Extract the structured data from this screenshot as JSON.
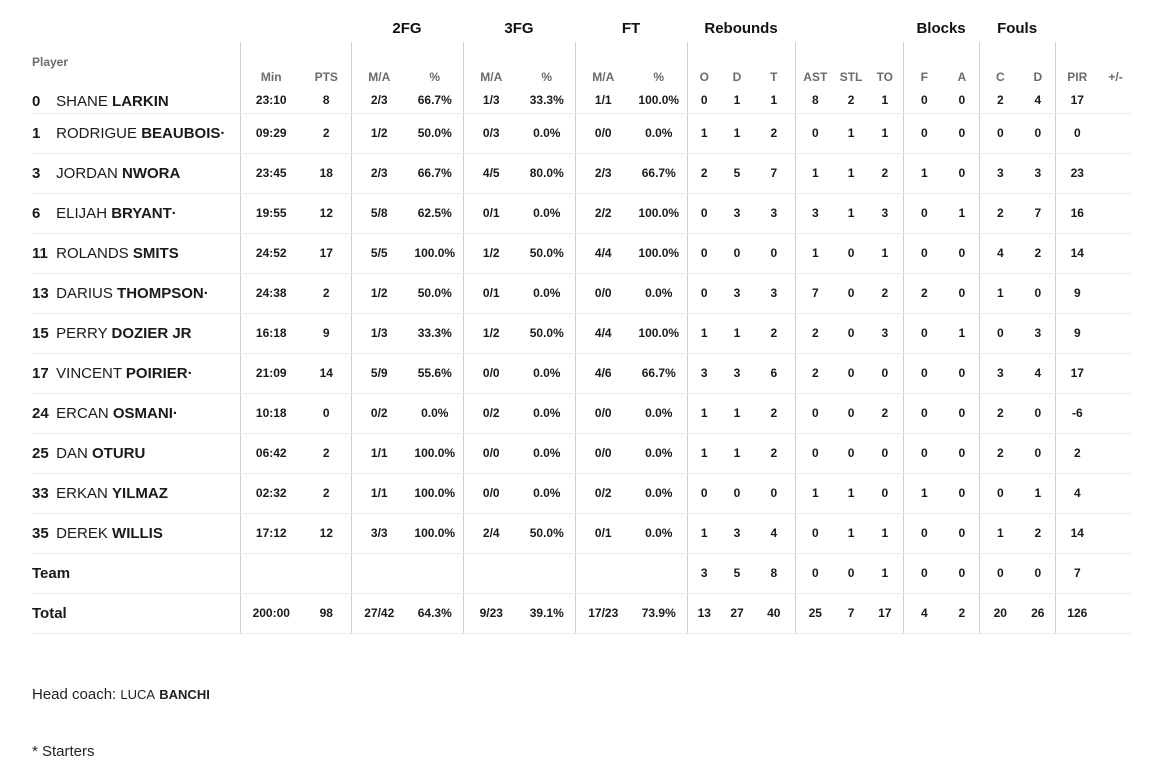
{
  "groups": {
    "fg2": "2FG",
    "fg3": "3FG",
    "ft": "FT",
    "reb": "Rebounds",
    "blk": "Blocks",
    "fouls": "Fouls"
  },
  "headers": {
    "player": "Player",
    "min": "Min",
    "pts": "PTS",
    "fg2_ma": "M/A",
    "fg2_pct": "%",
    "fg3_ma": "M/A",
    "fg3_pct": "%",
    "ft_ma": "M/A",
    "ft_pct": "%",
    "reb_o": "O",
    "reb_d": "D",
    "reb_t": "T",
    "ast": "AST",
    "stl": "STL",
    "to": "TO",
    "blk_f": "F",
    "blk_a": "A",
    "foul_c": "C",
    "foul_d": "D",
    "pir": "PIR",
    "pm": "+/-"
  },
  "players": [
    {
      "num": "0",
      "first": "SHANE",
      "last": "LARKIN",
      "min": "23:10",
      "pts": "8",
      "fg2_ma": "2/3",
      "fg2_pct": "66.7%",
      "fg3_ma": "1/3",
      "fg3_pct": "33.3%",
      "ft_ma": "1/1",
      "ft_pct": "100.0%",
      "o": "0",
      "d": "1",
      "t": "1",
      "ast": "8",
      "stl": "2",
      "to": "1",
      "bf": "0",
      "ba": "0",
      "fc": "2",
      "fd": "4",
      "pir": "17",
      "pm": ""
    },
    {
      "num": "1",
      "first": "RODRIGUE",
      "last": "BEAUBOIS·",
      "min": "09:29",
      "pts": "2",
      "fg2_ma": "1/2",
      "fg2_pct": "50.0%",
      "fg3_ma": "0/3",
      "fg3_pct": "0.0%",
      "ft_ma": "0/0",
      "ft_pct": "0.0%",
      "o": "1",
      "d": "1",
      "t": "2",
      "ast": "0",
      "stl": "1",
      "to": "1",
      "bf": "0",
      "ba": "0",
      "fc": "0",
      "fd": "0",
      "pir": "0",
      "pm": ""
    },
    {
      "num": "3",
      "first": "JORDAN",
      "last": "NWORA",
      "min": "23:45",
      "pts": "18",
      "fg2_ma": "2/3",
      "fg2_pct": "66.7%",
      "fg3_ma": "4/5",
      "fg3_pct": "80.0%",
      "ft_ma": "2/3",
      "ft_pct": "66.7%",
      "o": "2",
      "d": "5",
      "t": "7",
      "ast": "1",
      "stl": "1",
      "to": "2",
      "bf": "1",
      "ba": "0",
      "fc": "3",
      "fd": "3",
      "pir": "23",
      "pm": ""
    },
    {
      "num": "6",
      "first": "ELIJAH",
      "last": "BRYANT·",
      "min": "19:55",
      "pts": "12",
      "fg2_ma": "5/8",
      "fg2_pct": "62.5%",
      "fg3_ma": "0/1",
      "fg3_pct": "0.0%",
      "ft_ma": "2/2",
      "ft_pct": "100.0%",
      "o": "0",
      "d": "3",
      "t": "3",
      "ast": "3",
      "stl": "1",
      "to": "3",
      "bf": "0",
      "ba": "1",
      "fc": "2",
      "fd": "7",
      "pir": "16",
      "pm": ""
    },
    {
      "num": "11",
      "first": "ROLANDS",
      "last": "SMITS",
      "min": "24:52",
      "pts": "17",
      "fg2_ma": "5/5",
      "fg2_pct": "100.0%",
      "fg3_ma": "1/2",
      "fg3_pct": "50.0%",
      "ft_ma": "4/4",
      "ft_pct": "100.0%",
      "o": "0",
      "d": "0",
      "t": "0",
      "ast": "1",
      "stl": "0",
      "to": "1",
      "bf": "0",
      "ba": "0",
      "fc": "4",
      "fd": "2",
      "pir": "14",
      "pm": ""
    },
    {
      "num": "13",
      "first": "DARIUS",
      "last": "THOMPSON·",
      "min": "24:38",
      "pts": "2",
      "fg2_ma": "1/2",
      "fg2_pct": "50.0%",
      "fg3_ma": "0/1",
      "fg3_pct": "0.0%",
      "ft_ma": "0/0",
      "ft_pct": "0.0%",
      "o": "0",
      "d": "3",
      "t": "3",
      "ast": "7",
      "stl": "0",
      "to": "2",
      "bf": "2",
      "ba": "0",
      "fc": "1",
      "fd": "0",
      "pir": "9",
      "pm": ""
    },
    {
      "num": "15",
      "first": "PERRY",
      "last": "DOZIER JR",
      "min": "16:18",
      "pts": "9",
      "fg2_ma": "1/3",
      "fg2_pct": "33.3%",
      "fg3_ma": "1/2",
      "fg3_pct": "50.0%",
      "ft_ma": "4/4",
      "ft_pct": "100.0%",
      "o": "1",
      "d": "1",
      "t": "2",
      "ast": "2",
      "stl": "0",
      "to": "3",
      "bf": "0",
      "ba": "1",
      "fc": "0",
      "fd": "3",
      "pir": "9",
      "pm": ""
    },
    {
      "num": "17",
      "first": "VINCENT",
      "last": "POIRIER·",
      "min": "21:09",
      "pts": "14",
      "fg2_ma": "5/9",
      "fg2_pct": "55.6%",
      "fg3_ma": "0/0",
      "fg3_pct": "0.0%",
      "ft_ma": "4/6",
      "ft_pct": "66.7%",
      "o": "3",
      "d": "3",
      "t": "6",
      "ast": "2",
      "stl": "0",
      "to": "0",
      "bf": "0",
      "ba": "0",
      "fc": "3",
      "fd": "4",
      "pir": "17",
      "pm": ""
    },
    {
      "num": "24",
      "first": "ERCAN",
      "last": "OSMANI·",
      "min": "10:18",
      "pts": "0",
      "fg2_ma": "0/2",
      "fg2_pct": "0.0%",
      "fg3_ma": "0/2",
      "fg3_pct": "0.0%",
      "ft_ma": "0/0",
      "ft_pct": "0.0%",
      "o": "1",
      "d": "1",
      "t": "2",
      "ast": "0",
      "stl": "0",
      "to": "2",
      "bf": "0",
      "ba": "0",
      "fc": "2",
      "fd": "0",
      "pir": "-6",
      "pm": ""
    },
    {
      "num": "25",
      "first": "DAN",
      "last": "OTURU",
      "min": "06:42",
      "pts": "2",
      "fg2_ma": "1/1",
      "fg2_pct": "100.0%",
      "fg3_ma": "0/0",
      "fg3_pct": "0.0%",
      "ft_ma": "0/0",
      "ft_pct": "0.0%",
      "o": "1",
      "d": "1",
      "t": "2",
      "ast": "0",
      "stl": "0",
      "to": "0",
      "bf": "0",
      "ba": "0",
      "fc": "2",
      "fd": "0",
      "pir": "2",
      "pm": ""
    },
    {
      "num": "33",
      "first": "ERKAN",
      "last": "YILMAZ",
      "min": "02:32",
      "pts": "2",
      "fg2_ma": "1/1",
      "fg2_pct": "100.0%",
      "fg3_ma": "0/0",
      "fg3_pct": "0.0%",
      "ft_ma": "0/2",
      "ft_pct": "0.0%",
      "o": "0",
      "d": "0",
      "t": "0",
      "ast": "1",
      "stl": "1",
      "to": "0",
      "bf": "1",
      "ba": "0",
      "fc": "0",
      "fd": "1",
      "pir": "4",
      "pm": ""
    },
    {
      "num": "35",
      "first": "DEREK",
      "last": "WILLIS",
      "min": "17:12",
      "pts": "12",
      "fg2_ma": "3/3",
      "fg2_pct": "100.0%",
      "fg3_ma": "2/4",
      "fg3_pct": "50.0%",
      "ft_ma": "0/1",
      "ft_pct": "0.0%",
      "o": "1",
      "d": "3",
      "t": "4",
      "ast": "0",
      "stl": "1",
      "to": "1",
      "bf": "0",
      "ba": "0",
      "fc": "1",
      "fd": "2",
      "pir": "14",
      "pm": ""
    }
  ],
  "team": {
    "label": "Team",
    "min": "",
    "pts": "",
    "fg2_ma": "",
    "fg2_pct": "",
    "fg3_ma": "",
    "fg3_pct": "",
    "ft_ma": "",
    "ft_pct": "",
    "o": "3",
    "d": "5",
    "t": "8",
    "ast": "0",
    "stl": "0",
    "to": "1",
    "bf": "0",
    "ba": "0",
    "fc": "0",
    "fd": "0",
    "pir": "7",
    "pm": ""
  },
  "total": {
    "label": "Total",
    "min": "200:00",
    "pts": "98",
    "fg2_ma": "27/42",
    "fg2_pct": "64.3%",
    "fg3_ma": "9/23",
    "fg3_pct": "39.1%",
    "ft_ma": "17/23",
    "ft_pct": "73.9%",
    "o": "13",
    "d": "27",
    "t": "40",
    "ast": "25",
    "stl": "7",
    "to": "17",
    "bf": "4",
    "ba": "2",
    "fc": "20",
    "fd": "26",
    "pir": "126",
    "pm": ""
  },
  "footer": {
    "coach_label": "Head coach:",
    "coach_first": "LUCA",
    "coach_last": "BANCHI",
    "starters_note": "* Starters"
  }
}
